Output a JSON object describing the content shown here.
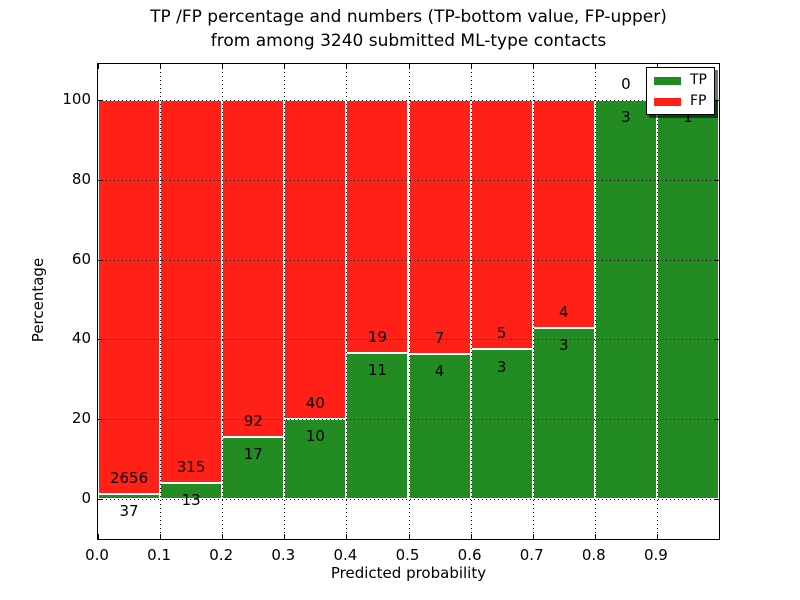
{
  "header": {
    "title_line1": "TP /FP percentage and numbers (TP-bottom value, FP-upper)",
    "title_line2": "from among 3240 submitted ML-type contacts"
  },
  "chart_data": {
    "type": "bar",
    "stacked": true,
    "title": "TP /FP percentage and numbers (TP-bottom value, FP-upper)\nfrom among 3240 submitted ML-type contacts",
    "total_submitted": 3240,
    "xlabel": "Predicted probability",
    "ylabel": "Percentage",
    "xlim": [
      0.0,
      1.0
    ],
    "ylim": [
      -10,
      109
    ],
    "xticks": [
      "0.0",
      "0.1",
      "0.2",
      "0.3",
      "0.4",
      "0.5",
      "0.6",
      "0.7",
      "0.8",
      "0.9"
    ],
    "yticks": [
      0,
      20,
      40,
      60,
      80,
      100
    ],
    "grid": "dotted-black-over-bars",
    "bar_edge_color": "#ffffff",
    "series": [
      {
        "name": "TP",
        "color": "#228b22"
      },
      {
        "name": "FP",
        "color": "#ff2018"
      }
    ],
    "legend": {
      "position": "upper right",
      "entries": [
        "TP",
        "FP"
      ],
      "shadow": true
    },
    "bins": [
      {
        "x0": 0.0,
        "x1": 0.1,
        "tp": 37,
        "fp": 2656,
        "tp_pct": 1.374,
        "fp_pct": 98.626
      },
      {
        "x0": 0.1,
        "x1": 0.2,
        "tp": 13,
        "fp": 315,
        "tp_pct": 3.963,
        "fp_pct": 96.037
      },
      {
        "x0": 0.2,
        "x1": 0.3,
        "tp": 17,
        "fp": 92,
        "tp_pct": 15.596,
        "fp_pct": 84.404
      },
      {
        "x0": 0.3,
        "x1": 0.4,
        "tp": 10,
        "fp": 40,
        "tp_pct": 20.0,
        "fp_pct": 80.0
      },
      {
        "x0": 0.4,
        "x1": 0.5,
        "tp": 11,
        "fp": 19,
        "tp_pct": 36.667,
        "fp_pct": 63.333
      },
      {
        "x0": 0.5,
        "x1": 0.6,
        "tp": 4,
        "fp": 7,
        "tp_pct": 36.364,
        "fp_pct": 63.636
      },
      {
        "x0": 0.6,
        "x1": 0.7,
        "tp": 3,
        "fp": 5,
        "tp_pct": 37.5,
        "fp_pct": 62.5
      },
      {
        "x0": 0.7,
        "x1": 0.8,
        "tp": 3,
        "fp": 4,
        "tp_pct": 42.857,
        "fp_pct": 57.143
      },
      {
        "x0": 0.8,
        "x1": 0.9,
        "tp": 3,
        "fp": 0,
        "tp_pct": 100.0,
        "fp_pct": 0.0
      },
      {
        "x0": 0.9,
        "x1": 1.0,
        "tp": 1,
        "fp": 0,
        "tp_pct": 100.0,
        "fp_pct": 0.0
      }
    ]
  }
}
